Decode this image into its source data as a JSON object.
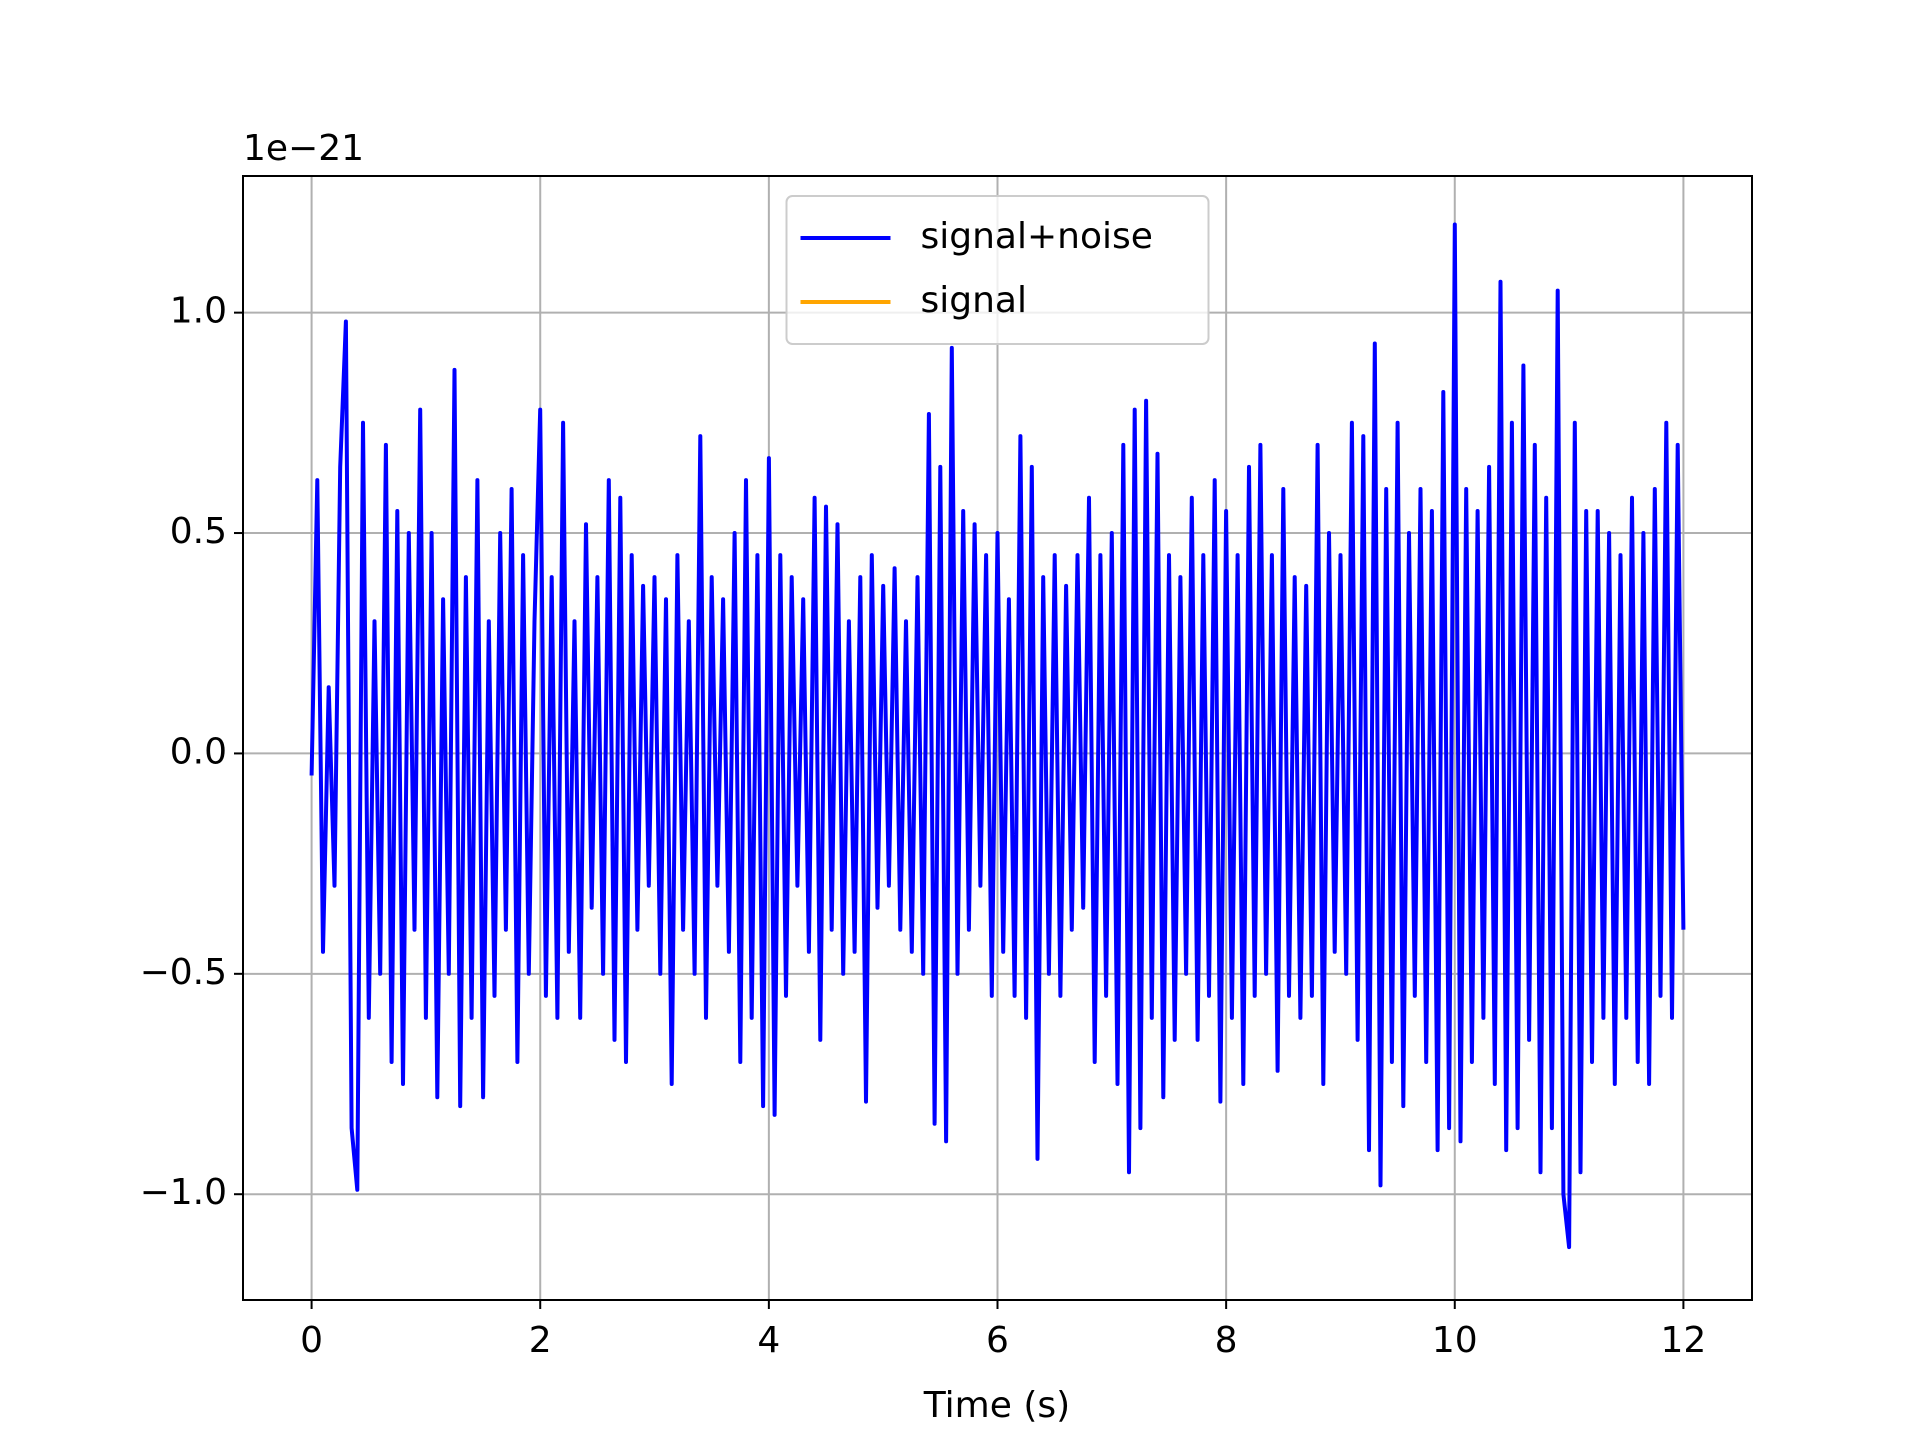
{
  "chart_data": {
    "type": "line",
    "xlabel": "Time (s)",
    "offset_text": "1e−21",
    "xlim": [
      -0.6,
      12.6
    ],
    "xticks": [
      0,
      2,
      4,
      6,
      8,
      10,
      12
    ],
    "ylim": [
      -1.24,
      1.31
    ],
    "yticks": [
      {
        "value": -1.0,
        "label": "−1.0"
      },
      {
        "value": -0.5,
        "label": "−0.5"
      },
      {
        "value": 0.0,
        "label": "0.0"
      },
      {
        "value": 0.5,
        "label": "0.5"
      },
      {
        "value": 1.0,
        "label": "1.0"
      }
    ],
    "grid": true,
    "legend": "upper center",
    "x": [
      0,
      0.05,
      0.1,
      0.15,
      0.2,
      0.25,
      0.3,
      0.35,
      0.4,
      0.45,
      0.5,
      0.55,
      0.6,
      0.65,
      0.7,
      0.75,
      0.8,
      0.85,
      0.9,
      0.95,
      1,
      1.05,
      1.1,
      1.15,
      1.2,
      1.25,
      1.3,
      1.35,
      1.4,
      1.45,
      1.5,
      1.55,
      1.6,
      1.65,
      1.7,
      1.75,
      1.8,
      1.85,
      1.9,
      1.95,
      2,
      2.05,
      2.1,
      2.15,
      2.2,
      2.25,
      2.3,
      2.35,
      2.4,
      2.45,
      2.5,
      2.55,
      2.6,
      2.65,
      2.7,
      2.75,
      2.8,
      2.85,
      2.9,
      2.95,
      3,
      3.05,
      3.1,
      3.15,
      3.2,
      3.25,
      3.3,
      3.35,
      3.4,
      3.45,
      3.5,
      3.55,
      3.6,
      3.65,
      3.7,
      3.75,
      3.8,
      3.85,
      3.9,
      3.95,
      4,
      4.05,
      4.1,
      4.15,
      4.2,
      4.25,
      4.3,
      4.35,
      4.4,
      4.45,
      4.5,
      4.55,
      4.6,
      4.65,
      4.7,
      4.75,
      4.8,
      4.85,
      4.9,
      4.95,
      5,
      5.05,
      5.1,
      5.15,
      5.2,
      5.25,
      5.3,
      5.35,
      5.4,
      5.45,
      5.5,
      5.55,
      5.6,
      5.65,
      5.7,
      5.75,
      5.8,
      5.85,
      5.9,
      5.95,
      6,
      6.05,
      6.1,
      6.15,
      6.2,
      6.25,
      6.3,
      6.35,
      6.4,
      6.45,
      6.5,
      6.55,
      6.6,
      6.65,
      6.7,
      6.75,
      6.8,
      6.85,
      6.9,
      6.95,
      7,
      7.05,
      7.1,
      7.15,
      7.2,
      7.25,
      7.3,
      7.35,
      7.4,
      7.45,
      7.5,
      7.55,
      7.6,
      7.65,
      7.7,
      7.75,
      7.8,
      7.85,
      7.9,
      7.95,
      8,
      8.05,
      8.1,
      8.15,
      8.2,
      8.25,
      8.3,
      8.35,
      8.4,
      8.45,
      8.5,
      8.55,
      8.6,
      8.65,
      8.7,
      8.75,
      8.8,
      8.85,
      8.9,
      8.95,
      9,
      9.05,
      9.1,
      9.15,
      9.2,
      9.25,
      9.3,
      9.35,
      9.4,
      9.45,
      9.5,
      9.55,
      9.6,
      9.65,
      9.7,
      9.75,
      9.8,
      9.85,
      9.9,
      9.95,
      10,
      10.05,
      10.1,
      10.15,
      10.2,
      10.25,
      10.3,
      10.35,
      10.4,
      10.45,
      10.5,
      10.55,
      10.6,
      10.65,
      10.7,
      10.75,
      10.8,
      10.85,
      10.9,
      10.95,
      11,
      11.05,
      11.1,
      11.15,
      11.2,
      11.25,
      11.3,
      11.35,
      11.4,
      11.45,
      11.5,
      11.55,
      11.6,
      11.65,
      11.7,
      11.75,
      11.8,
      11.85,
      11.9,
      11.95,
      12
    ],
    "series": [
      {
        "name": "signal+noise",
        "color": "#0000ff",
        "values": [
          -0.05,
          0.62,
          -0.45,
          0.15,
          -0.3,
          0.65,
          0.98,
          -0.85,
          -0.99,
          0.75,
          -0.6,
          0.3,
          -0.5,
          0.7,
          -0.7,
          0.55,
          -0.75,
          0.5,
          -0.4,
          0.78,
          -0.6,
          0.5,
          -0.78,
          0.35,
          -0.5,
          0.87,
          -0.8,
          0.4,
          -0.6,
          0.62,
          -0.78,
          0.3,
          -0.55,
          0.5,
          -0.4,
          0.6,
          -0.7,
          0.45,
          -0.5,
          0.3,
          0.78,
          -0.55,
          0.4,
          -0.6,
          0.75,
          -0.45,
          0.3,
          -0.6,
          0.52,
          -0.35,
          0.4,
          -0.5,
          0.62,
          -0.65,
          0.58,
          -0.7,
          0.45,
          -0.4,
          0.38,
          -0.3,
          0.4,
          -0.5,
          0.35,
          -0.75,
          0.45,
          -0.4,
          0.3,
          -0.5,
          0.72,
          -0.6,
          0.4,
          -0.3,
          0.35,
          -0.45,
          0.5,
          -0.7,
          0.62,
          -0.6,
          0.45,
          -0.8,
          0.67,
          -0.82,
          0.45,
          -0.55,
          0.4,
          -0.3,
          0.35,
          -0.45,
          0.58,
          -0.65,
          0.56,
          -0.4,
          0.52,
          -0.5,
          0.3,
          -0.45,
          0.4,
          -0.79,
          0.45,
          -0.35,
          0.38,
          -0.3,
          0.42,
          -0.4,
          0.3,
          -0.45,
          0.4,
          -0.5,
          0.77,
          -0.84,
          0.65,
          -0.88,
          0.92,
          -0.5,
          0.55,
          -0.4,
          0.52,
          -0.3,
          0.45,
          -0.55,
          0.5,
          -0.45,
          0.35,
          -0.55,
          0.72,
          -0.6,
          0.65,
          -0.92,
          0.4,
          -0.5,
          0.45,
          -0.55,
          0.38,
          -0.4,
          0.45,
          -0.35,
          0.58,
          -0.7,
          0.45,
          -0.55,
          0.5,
          -0.75,
          0.7,
          -0.95,
          0.78,
          -0.85,
          0.8,
          -0.6,
          0.68,
          -0.78,
          0.45,
          -0.65,
          0.4,
          -0.5,
          0.58,
          -0.65,
          0.45,
          -0.55,
          0.62,
          -0.79,
          0.55,
          -0.6,
          0.45,
          -0.75,
          0.65,
          -0.55,
          0.7,
          -0.5,
          0.45,
          -0.72,
          0.6,
          -0.55,
          0.4,
          -0.6,
          0.38,
          -0.55,
          0.7,
          -0.75,
          0.5,
          -0.45,
          0.45,
          -0.5,
          0.75,
          -0.65,
          0.72,
          -0.9,
          0.93,
          -0.98,
          0.6,
          -0.7,
          0.75,
          -0.8,
          0.5,
          -0.55,
          0.6,
          -0.7,
          0.55,
          -0.9,
          0.82,
          -0.85,
          1.2,
          -0.88,
          0.6,
          -0.7,
          0.55,
          -0.6,
          0.65,
          -0.75,
          1.07,
          -0.9,
          0.75,
          -0.85,
          0.88,
          -0.65,
          0.7,
          -0.95,
          0.58,
          -0.85,
          1.05,
          -1.0,
          -1.12,
          0.75,
          -0.95,
          0.55,
          -0.7,
          0.55,
          -0.6,
          0.5,
          -0.75,
          0.45,
          -0.6,
          0.58,
          -0.7,
          0.5,
          -0.75,
          0.6,
          -0.55,
          0.75,
          -0.6,
          0.7,
          -0.4
        ]
      },
      {
        "name": "signal",
        "color": "#ffa500",
        "x": [],
        "values": []
      }
    ]
  }
}
